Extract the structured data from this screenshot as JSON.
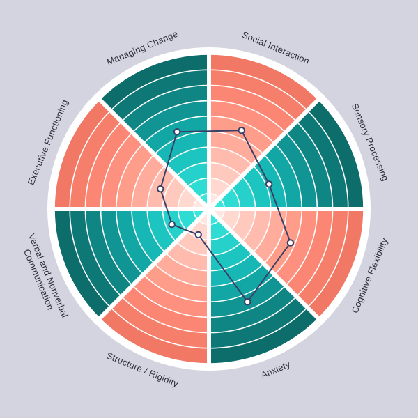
{
  "chart_data": {
    "type": "radar",
    "title": "",
    "levels": 10,
    "range": [
      0,
      10
    ],
    "categories": [
      "Social Interaction",
      "Sensory Processing",
      "Cognitive Flexibility",
      "Anxiety",
      "Structure / Rigidity",
      "Verbal and Nonverbal Communication",
      "Executive Functioning",
      "Managing Change"
    ],
    "label_lines": [
      [
        "Social Interaction"
      ],
      [
        "Sensory Processing"
      ],
      [
        "Cognitive Flexibility"
      ],
      [
        "Anxiety"
      ],
      [
        "Structure / Rigidity"
      ],
      [
        "Verbal and Nonverbal",
        "Communication"
      ],
      [
        "Executive Functioning"
      ],
      [
        "Managing Change"
      ]
    ],
    "series": [
      {
        "values": [
          5.5,
          4.2,
          5.7,
          6.5,
          1.8,
          2.6,
          3.4,
          5.4
        ]
      }
    ],
    "colors": {
      "background": "#d4d4e0",
      "disc": "#ffffff",
      "series_line": "#3a3f66",
      "marker_fill": "#ffffff",
      "pink_palette": [
        "#ffe6e1",
        "#ffd8d0",
        "#ffc9be",
        "#ffbbad",
        "#ffac9c",
        "#ff9d8b",
        "#fd907e",
        "#fa8673",
        "#f57f6b",
        "#f07864"
      ],
      "teal_palette": [
        "#3ae6dc",
        "#2fdcd3",
        "#25d1ca",
        "#1cc5c0",
        "#16b7b4",
        "#12a6a5",
        "#109494",
        "#0f8584",
        "#0e7876",
        "#0d6d6a"
      ]
    },
    "sector_color_order": [
      "pink",
      "teal",
      "pink",
      "teal",
      "pink",
      "teal",
      "pink",
      "teal"
    ]
  }
}
